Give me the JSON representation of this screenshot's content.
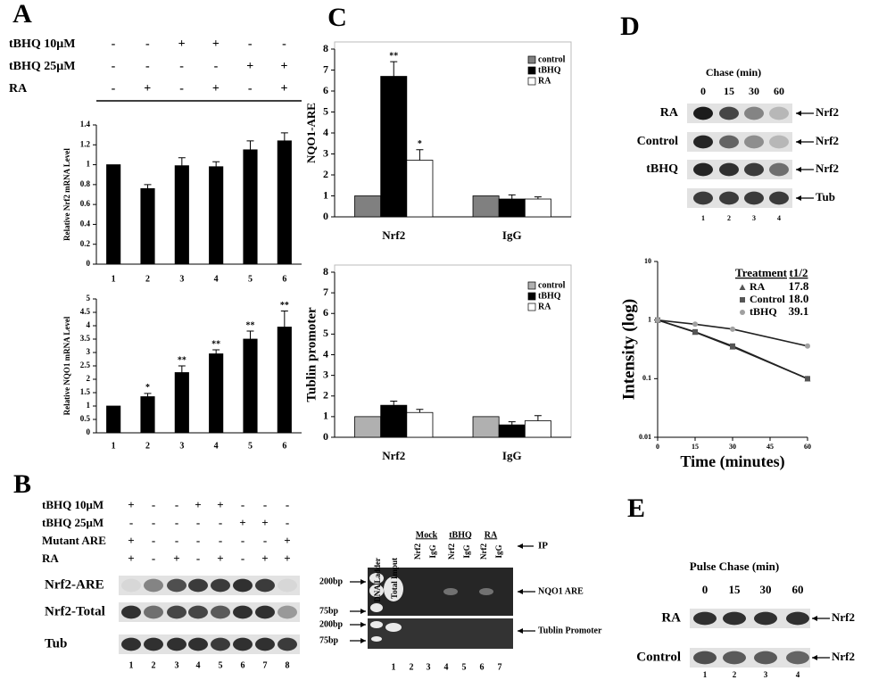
{
  "panel_labels": [
    "A",
    "B",
    "C",
    "D",
    "E"
  ],
  "treatments_a": [
    {
      "label": "tBHQ 10μM",
      "signs": [
        "-",
        "-",
        "+",
        "+",
        "-",
        "-"
      ]
    },
    {
      "label": "tBHQ 25μM",
      "signs": [
        "-",
        "-",
        "-",
        "-",
        "+",
        "+"
      ]
    },
    {
      "label": "RA",
      "signs": [
        "-",
        "+",
        "-",
        "+",
        "-",
        "+"
      ]
    }
  ],
  "chart_data": [
    {
      "type": "bar",
      "y_label": "Relative Nrf2 mRNA Level",
      "categories": [
        "1",
        "2",
        "3",
        "4",
        "5",
        "6"
      ],
      "values": [
        1,
        0.76,
        0.99,
        0.98,
        1.15,
        1.24
      ],
      "errors": [
        0,
        0.04,
        0.08,
        0.05,
        0.09,
        0.08
      ],
      "color": "#000000",
      "ylim": [
        0,
        1.4
      ],
      "yticks": [
        0,
        0.2,
        0.4,
        0.6,
        0.8,
        1,
        1.2,
        1.4
      ]
    },
    {
      "type": "bar",
      "y_label": "Relative NQO1 mRNA Level",
      "categories": [
        "1",
        "2",
        "3",
        "4",
        "5",
        "6"
      ],
      "values": [
        1,
        1.35,
        2.25,
        2.95,
        3.5,
        3.95
      ],
      "errors": [
        0,
        0.12,
        0.25,
        0.15,
        0.3,
        0.6
      ],
      "significance": [
        null,
        "*",
        "**",
        "**",
        "**",
        "**"
      ],
      "color": "#000000",
      "ylim": [
        0,
        5
      ],
      "yticks": [
        0,
        0.5,
        1,
        1.5,
        2,
        2.5,
        3,
        3.5,
        4,
        4.5,
        5
      ]
    },
    {
      "type": "grouped_bar",
      "y_label": "NQO1-ARE",
      "categories": [
        "Nrf2",
        "IgG"
      ],
      "legend": "upper right",
      "series": [
        {
          "name": "control",
          "color": "#808080",
          "values": [
            1,
            1
          ]
        },
        {
          "name": "tBHQ",
          "color": "#000000",
          "values": [
            6.7,
            0.85
          ],
          "errors": [
            0.7,
            0.2
          ],
          "significance": [
            "**",
            null
          ]
        },
        {
          "name": "RA",
          "color": "#ffffff",
          "values": [
            2.7,
            0.85
          ],
          "errors": [
            0.5,
            0.1
          ],
          "significance": [
            "*",
            null
          ]
        }
      ],
      "ylim": [
        0,
        8
      ],
      "yticks": [
        0,
        1,
        2,
        3,
        4,
        5,
        6,
        7,
        8
      ]
    },
    {
      "type": "grouped_bar",
      "y_label": "Tublin promoter",
      "categories": [
        "Nrf2",
        "IgG"
      ],
      "legend": "upper right",
      "series": [
        {
          "name": "control",
          "color": "#b0b0b0",
          "values": [
            1,
            1
          ]
        },
        {
          "name": "tBHQ",
          "color": "#000000",
          "values": [
            1.55,
            0.6
          ],
          "errors": [
            0.2,
            0.15
          ]
        },
        {
          "name": "RA",
          "color": "#ffffff",
          "values": [
            1.2,
            0.8
          ],
          "errors": [
            0.15,
            0.25
          ]
        }
      ],
      "ylim": [
        0,
        8
      ],
      "yticks": [
        0,
        1,
        2,
        3,
        4,
        5,
        6,
        7,
        8
      ]
    },
    {
      "type": "line",
      "x_label": "Time (minutes)",
      "y_label": "Intensity (log)",
      "x": [
        0,
        15,
        30,
        60
      ],
      "xlim": [
        0,
        60
      ],
      "xticks": [
        0,
        15,
        30,
        45,
        60
      ],
      "ylim": [
        0.01,
        10
      ],
      "yticks": [
        0.01,
        0.1,
        1,
        10
      ],
      "log_y": true,
      "legend_title": "Treatment",
      "legend_value_title": "t1/2",
      "series": [
        {
          "name": "RA",
          "color": "#555555",
          "marker": "triangle",
          "values": [
            1,
            0.62,
            0.35,
            0.1
          ],
          "half_life": "17.8"
        },
        {
          "name": "Control",
          "color": "#555555",
          "marker": "square",
          "values": [
            1,
            0.63,
            0.36,
            0.1
          ],
          "half_life": "18.0"
        },
        {
          "name": "tBHQ",
          "color": "#a0a0a0",
          "marker": "circle",
          "values": [
            1,
            0.85,
            0.7,
            0.36
          ],
          "half_life": "39.1"
        }
      ]
    }
  ],
  "blot_b": {
    "treatments": [
      {
        "label": "tBHQ 10μM",
        "signs": [
          "+",
          "-",
          "-",
          "+",
          "+",
          "-",
          "-",
          "-"
        ]
      },
      {
        "label": "tBHQ 25μM",
        "signs": [
          "-",
          "-",
          "-",
          "-",
          "-",
          "+",
          "+",
          "-"
        ]
      },
      {
        "label": "Mutant ARE",
        "signs": [
          "+",
          "-",
          "-",
          "-",
          "-",
          "-",
          "-",
          "+"
        ]
      },
      {
        "label": "RA",
        "signs": [
          "+",
          "-",
          "+",
          "-",
          "+",
          "-",
          "+",
          "+"
        ]
      }
    ],
    "rows": [
      "Nrf2-ARE",
      "Nrf2-Total",
      "Tub"
    ],
    "lanes": [
      "1",
      "2",
      "3",
      "4",
      "5",
      "6",
      "7",
      "8"
    ]
  },
  "gel_b": {
    "ladder": "DNA Ladder",
    "input": "Total Imput",
    "groups": [
      "Mock",
      "tBHQ",
      "RA"
    ],
    "lane_labels": [
      "Nrf2",
      "IgG",
      "Nrf2",
      "IgG",
      "Nrf2",
      "IgG"
    ],
    "ip": "IP",
    "markers": [
      "200bp",
      "75bp",
      "200bp",
      "75bp"
    ],
    "bands": [
      "NQO1 ARE",
      "Tublin Promoter"
    ],
    "lanes": [
      "1",
      "2",
      "3",
      "4",
      "5",
      "6",
      "7"
    ]
  },
  "blot_d": {
    "title": "Chase (min)",
    "times": [
      "0",
      "15",
      "30",
      "60"
    ],
    "rows": [
      {
        "label": "RA",
        "target": "Nrf2"
      },
      {
        "label": "Control",
        "target": "Nrf2"
      },
      {
        "label": "tBHQ",
        "target": "Nrf2"
      }
    ],
    "loading": "Tub",
    "lanes": [
      "1",
      "2",
      "3",
      "4"
    ]
  },
  "blot_e": {
    "title": "Pulse Chase (min)",
    "times": [
      "0",
      "15",
      "30",
      "60"
    ],
    "rows": [
      {
        "label": "RA",
        "target": "Nrf2"
      },
      {
        "label": "Control",
        "target": "Nrf2"
      }
    ],
    "lanes": [
      "1",
      "2",
      "3",
      "4"
    ]
  }
}
